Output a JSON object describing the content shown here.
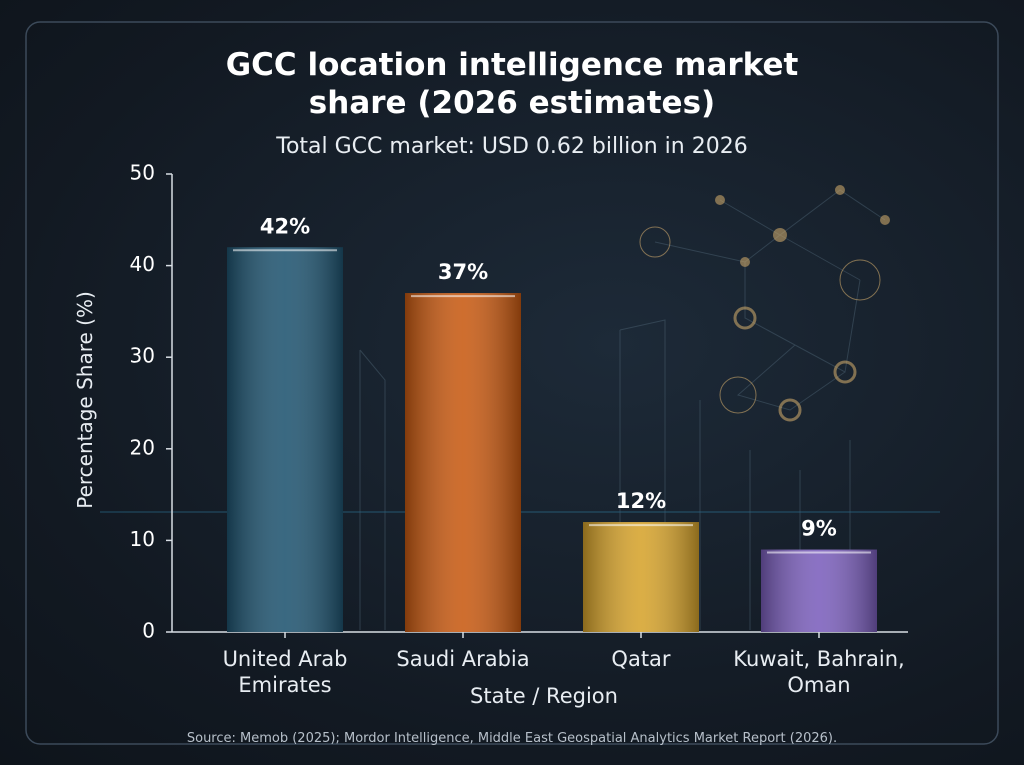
{
  "chart_data": {
    "type": "bar",
    "title": "GCC location intelligence market share (2026 estimates)",
    "subtitle": "Total GCC market: USD 0.62 billion in 2026",
    "x_label": "State / Region",
    "y_label": "Percentage Share (%)",
    "source": "Source: Memob (2025); Mordor Intelligence, Middle East Geospatial Analytics Market Report (2026).",
    "categories": [
      "United Arab Emirates",
      "Saudi Arabia",
      "Qatar",
      "Kuwait, Bahrain, Oman"
    ],
    "values": [
      42,
      37,
      12,
      9
    ],
    "value_labels": [
      "42%",
      "37%",
      "12%",
      "9%"
    ],
    "colors": [
      "#1f5470",
      "#c85a12",
      "#d6a32c",
      "#7b5fbc"
    ],
    "ylim": [
      0,
      50
    ],
    "yticks": [
      0,
      10,
      20,
      30,
      40,
      50
    ],
    "grid": false
  }
}
